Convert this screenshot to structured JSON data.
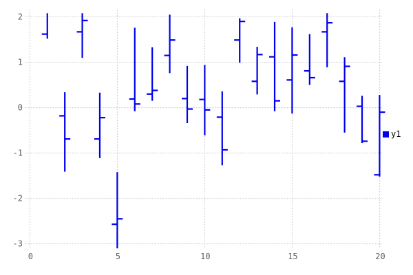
{
  "chart_data": {
    "type": "ohlc",
    "style": "financebars",
    "title": "",
    "xlabel": "",
    "ylabel": "",
    "xlim": [
      -0.25,
      20.25
    ],
    "ylim": [
      -3.1,
      2.16
    ],
    "x_ticks": {
      "values": [
        0,
        5,
        10,
        15,
        20
      ],
      "labels": [
        "0",
        "5",
        "10",
        "15",
        "20"
      ]
    },
    "y_ticks": {
      "values": [
        -3,
        -2,
        -1,
        0,
        1,
        2
      ],
      "labels": [
        "-3",
        "-2",
        "-1",
        "0",
        "1",
        "2"
      ]
    },
    "grid": true,
    "legend_position": "outside-right",
    "series": [
      {
        "name": "y1",
        "color": "#0000ee",
        "points": [
          {
            "x": 1,
            "low": 1.52,
            "high": 2.08,
            "open": 1.62,
            "close": null
          },
          {
            "x": 2,
            "low": -1.41,
            "high": 0.34,
            "open": -0.18,
            "close": -0.69
          },
          {
            "x": 3,
            "low": 1.1,
            "high": 2.08,
            "open": 1.67,
            "close": 1.92
          },
          {
            "x": 4,
            "low": -1.11,
            "high": 0.33,
            "open": -0.69,
            "close": -0.22
          },
          {
            "x": 5,
            "low": -3.1,
            "high": -1.42,
            "open": -2.57,
            "close": -2.45
          },
          {
            "x": 6,
            "low": -0.08,
            "high": 1.76,
            "open": 0.19,
            "close": 0.08
          },
          {
            "x": 7,
            "low": 0.15,
            "high": 1.33,
            "open": 0.3,
            "close": 0.38
          },
          {
            "x": 8,
            "low": 0.76,
            "high": 2.05,
            "open": 1.15,
            "close": 1.49
          },
          {
            "x": 9,
            "low": -0.34,
            "high": 0.92,
            "open": 0.2,
            "close": -0.03
          },
          {
            "x": 10,
            "low": -0.61,
            "high": 0.94,
            "open": 0.18,
            "close": -0.05
          },
          {
            "x": 11,
            "low": -1.27,
            "high": 0.36,
            "open": -0.21,
            "close": -0.93
          },
          {
            "x": 12,
            "low": 0.99,
            "high": 1.97,
            "open": 1.49,
            "close": 1.9
          },
          {
            "x": 13,
            "low": 0.29,
            "high": 1.34,
            "open": 0.58,
            "close": 1.17
          },
          {
            "x": 14,
            "low": -0.08,
            "high": 1.89,
            "open": 1.12,
            "close": 0.15
          },
          {
            "x": 15,
            "low": -0.13,
            "high": 1.77,
            "open": 0.61,
            "close": 1.16
          },
          {
            "x": 16,
            "low": 0.5,
            "high": 1.62,
            "open": 0.81,
            "close": 0.66
          },
          {
            "x": 17,
            "low": 0.89,
            "high": 2.08,
            "open": 1.67,
            "close": 1.87
          },
          {
            "x": 18,
            "low": -0.55,
            "high": 1.11,
            "open": 0.58,
            "close": 0.91
          },
          {
            "x": 19,
            "low": -0.78,
            "high": 0.26,
            "open": 0.03,
            "close": -0.74
          },
          {
            "x": 20,
            "low": -1.52,
            "high": 0.28,
            "open": -1.48,
            "close": -0.1
          }
        ]
      }
    ],
    "colors": {
      "series_blue": "#0000ee",
      "grid": "#ccccd6",
      "tick_label": "#606060",
      "legend_text": "#000000",
      "background": "#ffffff"
    }
  },
  "legend": {
    "label": "y1",
    "marker": "filled-square",
    "marker_color": "#0000ee"
  }
}
